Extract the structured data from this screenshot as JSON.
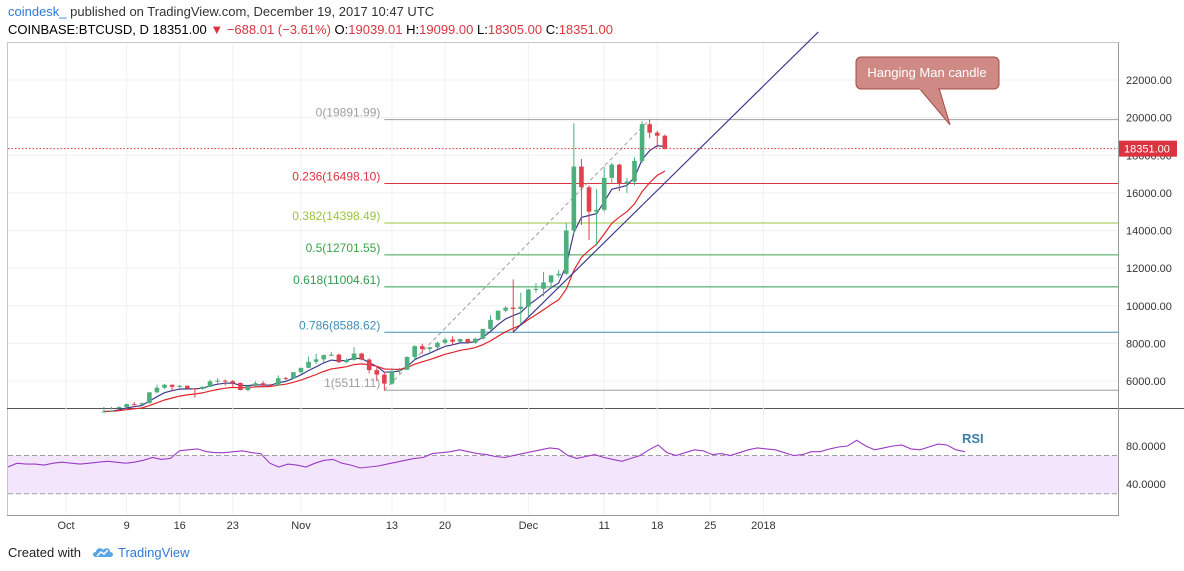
{
  "header": {
    "brand": "coindesk_",
    "published_text": "published on TradingView.com, December 19, 2017 10:47 UTC",
    "symbol": "COINBASE:BTCUSD, D",
    "last": "18351.00",
    "change": "−688.01 (−3.61%)",
    "o_label": "O:",
    "o_value": "19039.01",
    "h_label": "H:",
    "h_value": "19099.00",
    "l_label": "L:",
    "l_value": "18305.00",
    "c_label": "C:",
    "c_value": "18351.00"
  },
  "footer": {
    "created_with": "Created with",
    "tradingview": "TradingView"
  },
  "colors": {
    "up": "#4caf7d",
    "down": "#e0424d",
    "ema_fast": "#3f3a8f",
    "ema_slow": "#e0242b",
    "rsi": "#9b3bc4",
    "rsi_band": "#f3e6fc",
    "price_line": "#d9343f"
  },
  "chart_data": [
    {
      "type": "candlestick",
      "title": "",
      "series_name": "",
      "current_price_label": "18351.00",
      "y_ticks": [
        "6000.00",
        "8000.00",
        "10000.00",
        "12000.00",
        "14000.00",
        "16000.00",
        "18000.00",
        "20000.00",
        "22000.00"
      ],
      "x_ticks": [
        "Oct",
        "9",
        "16",
        "23",
        "Nov",
        "13",
        "20",
        "Dec",
        "11",
        "18",
        "25",
        "2018"
      ],
      "ylim": [
        4700,
        24000
      ],
      "fib_levels": [
        {
          "ratio": 0,
          "price": 19891.99,
          "label": "0(19891.99)",
          "color": "#9e9e9e"
        },
        {
          "ratio": 0.236,
          "price": 16498.1,
          "label": "0.236(16498.10)",
          "color": "#d9343f"
        },
        {
          "ratio": 0.382,
          "price": 14398.49,
          "label": "0.382(14398.49)",
          "color": "#9bc53d"
        },
        {
          "ratio": 0.5,
          "price": 12701.55,
          "label": "0.5(12701.55)",
          "color": "#3aa34b"
        },
        {
          "ratio": 0.618,
          "price": 11004.61,
          "label": "0.618(11004.61)",
          "color": "#2e9e4f"
        },
        {
          "ratio": 0.786,
          "price": 8588.62,
          "label": "0.786(8588.62)",
          "color": "#3e8fb5"
        },
        {
          "ratio": 1,
          "price": 5511.11,
          "label": "1(5511.11)",
          "color": "#9e9e9e"
        }
      ],
      "annotation": {
        "text": "Hanging Man candle",
        "target_date": "2017-12-18"
      },
      "candles": [
        {
          "date": "2017-10-06",
          "o": 4330,
          "h": 4400,
          "l": 4300,
          "c": 4380
        },
        {
          "date": "2017-10-07",
          "o": 4380,
          "h": 4480,
          "l": 4340,
          "c": 4430
        },
        {
          "date": "2017-10-08",
          "o": 4430,
          "h": 4650,
          "l": 4400,
          "c": 4620
        },
        {
          "date": "2017-10-09",
          "o": 4620,
          "h": 4800,
          "l": 4580,
          "c": 4770
        },
        {
          "date": "2017-10-10",
          "o": 4770,
          "h": 4880,
          "l": 4700,
          "c": 4760
        },
        {
          "date": "2017-10-11",
          "o": 4760,
          "h": 4860,
          "l": 4730,
          "c": 4820
        },
        {
          "date": "2017-10-12",
          "o": 4820,
          "h": 5400,
          "l": 4800,
          "c": 5400
        },
        {
          "date": "2017-10-13",
          "o": 5400,
          "h": 5800,
          "l": 5350,
          "c": 5640
        },
        {
          "date": "2017-10-14",
          "o": 5640,
          "h": 5850,
          "l": 5580,
          "c": 5800
        },
        {
          "date": "2017-10-15",
          "o": 5800,
          "h": 5820,
          "l": 5500,
          "c": 5690
        },
        {
          "date": "2017-10-16",
          "o": 5690,
          "h": 5790,
          "l": 5620,
          "c": 5750
        },
        {
          "date": "2017-10-17",
          "o": 5750,
          "h": 5760,
          "l": 5530,
          "c": 5600
        },
        {
          "date": "2017-10-18",
          "o": 5600,
          "h": 5620,
          "l": 5120,
          "c": 5580
        },
        {
          "date": "2017-10-19",
          "o": 5580,
          "h": 5720,
          "l": 5540,
          "c": 5690
        },
        {
          "date": "2017-10-20",
          "o": 5690,
          "h": 6070,
          "l": 5660,
          "c": 5980
        },
        {
          "date": "2017-10-21",
          "o": 5980,
          "h": 6150,
          "l": 5880,
          "c": 6020
        },
        {
          "date": "2017-10-22",
          "o": 6020,
          "h": 6080,
          "l": 5760,
          "c": 5990
        },
        {
          "date": "2017-10-23",
          "o": 5990,
          "h": 6050,
          "l": 5700,
          "c": 5900
        },
        {
          "date": "2017-10-24",
          "o": 5900,
          "h": 5920,
          "l": 5500,
          "c": 5520
        },
        {
          "date": "2017-10-25",
          "o": 5520,
          "h": 5780,
          "l": 5450,
          "c": 5740
        },
        {
          "date": "2017-10-26",
          "o": 5740,
          "h": 5980,
          "l": 5700,
          "c": 5880
        },
        {
          "date": "2017-10-27",
          "o": 5880,
          "h": 5990,
          "l": 5700,
          "c": 5770
        },
        {
          "date": "2017-10-28",
          "o": 5770,
          "h": 5840,
          "l": 5680,
          "c": 5760
        },
        {
          "date": "2017-10-29",
          "o": 5760,
          "h": 6300,
          "l": 5740,
          "c": 6150
        },
        {
          "date": "2017-10-30",
          "o": 6150,
          "h": 6220,
          "l": 6050,
          "c": 6130
        },
        {
          "date": "2017-10-31",
          "o": 6130,
          "h": 6470,
          "l": 6100,
          "c": 6470
        },
        {
          "date": "2017-11-01",
          "o": 6470,
          "h": 6700,
          "l": 6380,
          "c": 6700
        },
        {
          "date": "2017-11-02",
          "o": 6700,
          "h": 7300,
          "l": 6680,
          "c": 7020
        },
        {
          "date": "2017-11-03",
          "o": 7020,
          "h": 7450,
          "l": 6900,
          "c": 7150
        },
        {
          "date": "2017-11-04",
          "o": 7150,
          "h": 7400,
          "l": 6980,
          "c": 7380
        },
        {
          "date": "2017-11-05",
          "o": 7380,
          "h": 7550,
          "l": 7320,
          "c": 7400
        },
        {
          "date": "2017-11-06",
          "o": 7400,
          "h": 7450,
          "l": 6950,
          "c": 7000
        },
        {
          "date": "2017-11-07",
          "o": 7000,
          "h": 7200,
          "l": 6950,
          "c": 7120
        },
        {
          "date": "2017-11-08",
          "o": 7120,
          "h": 7800,
          "l": 7080,
          "c": 7460
        },
        {
          "date": "2017-11-09",
          "o": 7460,
          "h": 7500,
          "l": 7100,
          "c": 7140
        },
        {
          "date": "2017-11-10",
          "o": 7140,
          "h": 7200,
          "l": 6400,
          "c": 6580
        },
        {
          "date": "2017-11-11",
          "o": 6580,
          "h": 6800,
          "l": 6000,
          "c": 6340
        },
        {
          "date": "2017-11-12",
          "o": 6340,
          "h": 6500,
          "l": 5500,
          "c": 5860
        },
        {
          "date": "2017-11-13",
          "o": 5860,
          "h": 6700,
          "l": 5800,
          "c": 6530
        },
        {
          "date": "2017-11-14",
          "o": 6530,
          "h": 6700,
          "l": 6400,
          "c": 6600
        },
        {
          "date": "2017-11-15",
          "o": 6600,
          "h": 7300,
          "l": 6580,
          "c": 7280
        },
        {
          "date": "2017-11-16",
          "o": 7280,
          "h": 7900,
          "l": 7100,
          "c": 7850
        },
        {
          "date": "2017-11-17",
          "o": 7850,
          "h": 7980,
          "l": 7450,
          "c": 7700
        },
        {
          "date": "2017-11-18",
          "o": 7700,
          "h": 7800,
          "l": 7500,
          "c": 7790
        },
        {
          "date": "2017-11-19",
          "o": 7790,
          "h": 8100,
          "l": 7680,
          "c": 8030
        },
        {
          "date": "2017-11-20",
          "o": 8030,
          "h": 8300,
          "l": 7950,
          "c": 8200
        },
        {
          "date": "2017-11-21",
          "o": 8200,
          "h": 8380,
          "l": 7900,
          "c": 8090
        },
        {
          "date": "2017-11-22",
          "o": 8090,
          "h": 8250,
          "l": 8050,
          "c": 8230
        },
        {
          "date": "2017-11-23",
          "o": 8230,
          "h": 8250,
          "l": 8030,
          "c": 8030
        },
        {
          "date": "2017-11-24",
          "o": 8030,
          "h": 8300,
          "l": 7980,
          "c": 8250
        },
        {
          "date": "2017-11-25",
          "o": 8250,
          "h": 8770,
          "l": 8200,
          "c": 8770
        },
        {
          "date": "2017-11-26",
          "o": 8770,
          "h": 9500,
          "l": 8700,
          "c": 9250
        },
        {
          "date": "2017-11-27",
          "o": 9250,
          "h": 9740,
          "l": 9200,
          "c": 9740
        },
        {
          "date": "2017-11-28",
          "o": 9740,
          "h": 9970,
          "l": 9650,
          "c": 9900
        },
        {
          "date": "2017-11-29",
          "o": 9900,
          "h": 11400,
          "l": 8600,
          "c": 9830
        },
        {
          "date": "2017-11-30",
          "o": 9830,
          "h": 10700,
          "l": 9000,
          "c": 9950
        },
        {
          "date": "2017-12-01",
          "o": 9950,
          "h": 10900,
          "l": 9400,
          "c": 10860
        },
        {
          "date": "2017-12-02",
          "o": 10860,
          "h": 11200,
          "l": 10700,
          "c": 10900
        },
        {
          "date": "2017-12-03",
          "o": 10900,
          "h": 11800,
          "l": 10500,
          "c": 11240
        },
        {
          "date": "2017-12-04",
          "o": 11240,
          "h": 11600,
          "l": 10900,
          "c": 11620
        },
        {
          "date": "2017-12-05",
          "o": 11620,
          "h": 11900,
          "l": 11500,
          "c": 11700
        },
        {
          "date": "2017-12-06",
          "o": 11700,
          "h": 14400,
          "l": 11650,
          "c": 14000
        },
        {
          "date": "2017-12-07",
          "o": 14000,
          "h": 19700,
          "l": 13800,
          "c": 17400
        },
        {
          "date": "2017-12-08",
          "o": 17400,
          "h": 17800,
          "l": 14300,
          "c": 16300
        },
        {
          "date": "2017-12-09",
          "o": 16300,
          "h": 16400,
          "l": 13500,
          "c": 15000
        },
        {
          "date": "2017-12-10",
          "o": 15000,
          "h": 16200,
          "l": 13200,
          "c": 15100
        },
        {
          "date": "2017-12-11",
          "o": 15100,
          "h": 17400,
          "l": 15000,
          "c": 16800
        },
        {
          "date": "2017-12-12",
          "o": 16800,
          "h": 17600,
          "l": 16500,
          "c": 17500
        },
        {
          "date": "2017-12-13",
          "o": 17500,
          "h": 17550,
          "l": 16100,
          "c": 16500
        },
        {
          "date": "2017-12-14",
          "o": 16500,
          "h": 16800,
          "l": 16000,
          "c": 16600
        },
        {
          "date": "2017-12-15",
          "o": 16600,
          "h": 17900,
          "l": 16400,
          "c": 17700
        },
        {
          "date": "2017-12-16",
          "o": 17700,
          "h": 19800,
          "l": 17600,
          "c": 19650
        },
        {
          "date": "2017-12-17",
          "o": 19650,
          "h": 19892,
          "l": 18900,
          "c": 19200
        },
        {
          "date": "2017-12-18",
          "o": 19200,
          "h": 19300,
          "l": 18400,
          "c": 19039
        },
        {
          "date": "2017-12-19",
          "o": 19039,
          "h": 19099,
          "l": 18305,
          "c": 18351
        }
      ],
      "trendline": {
        "from_date": "2017-11-29",
        "from_price": 8600,
        "to_date": "2018-01-01",
        "to_price": 23600
      },
      "fib_anchor": {
        "from_date": "2017-11-12",
        "from_price": 5511.11,
        "to_date": "2017-12-17",
        "to_price": 19891.99
      }
    },
    {
      "type": "line",
      "title": "RSI",
      "series_name": "",
      "y_ticks": [
        "40.0000",
        "80.0000"
      ],
      "ylim": [
        0,
        100
      ],
      "band": [
        30,
        70
      ],
      "rsi": [
        58,
        62,
        61,
        61,
        60,
        62,
        63,
        62,
        61,
        62,
        63,
        64,
        63,
        62,
        63,
        65,
        68,
        66,
        67,
        75,
        76,
        77,
        74,
        73,
        73,
        74,
        75,
        73,
        72,
        62,
        58,
        61,
        60,
        58,
        62,
        65,
        66,
        62,
        60,
        57,
        58,
        59,
        61,
        63,
        65,
        67,
        68,
        72,
        73,
        74,
        76,
        74,
        72,
        71,
        69,
        68,
        70,
        72,
        74,
        76,
        78,
        77,
        70,
        67,
        69,
        71,
        68,
        66,
        64,
        67,
        70,
        76,
        81,
        73,
        70,
        73,
        76,
        75,
        71,
        72,
        70,
        73,
        76,
        78,
        77,
        76,
        73,
        70,
        71,
        74,
        74,
        77,
        79,
        80,
        86,
        80,
        76,
        78,
        80,
        81,
        77,
        76,
        79,
        82,
        81,
        76,
        74
      ]
    }
  ]
}
